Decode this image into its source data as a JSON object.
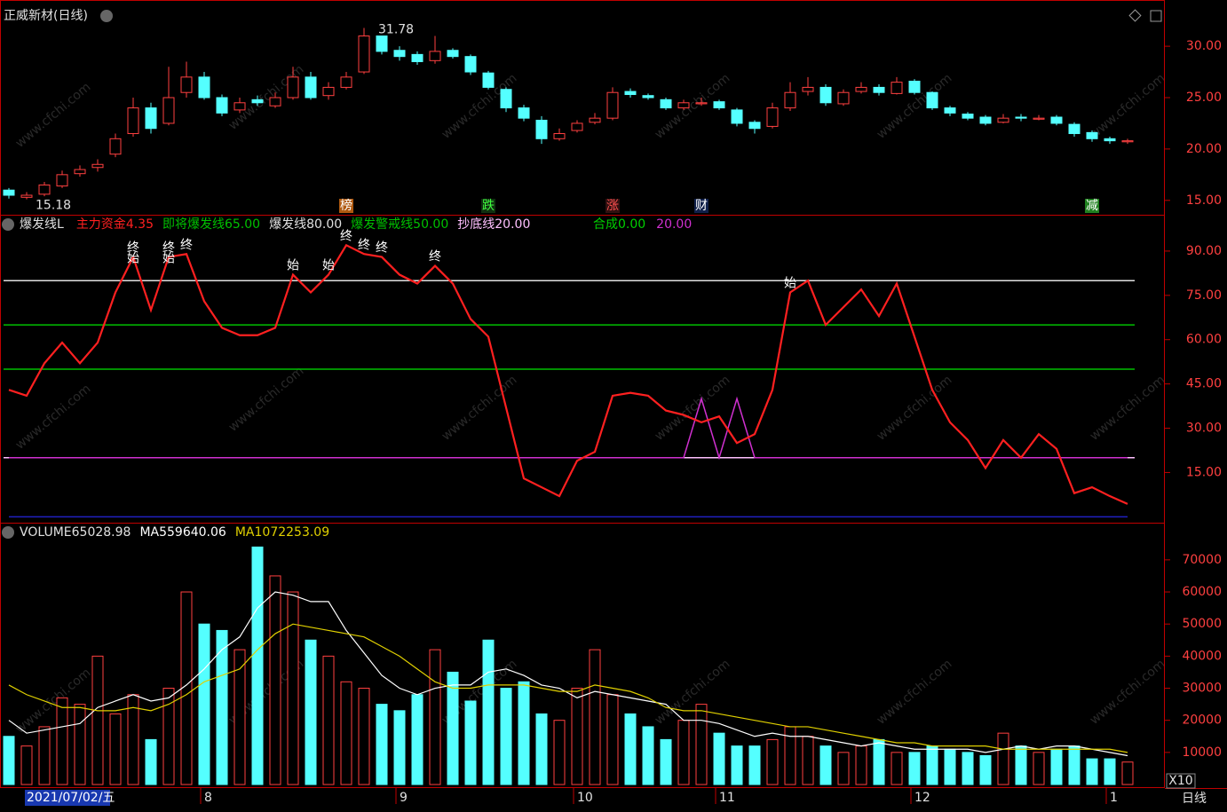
{
  "chart_data": [
    {
      "type": "candlestick",
      "title": "正威新材(日线)",
      "open": [
        16,
        15.3,
        15.6,
        16.4,
        17.6,
        18.2,
        19.5,
        21.5,
        24,
        22.5,
        25.5,
        27,
        25,
        23.8,
        24.8,
        24.2,
        25,
        27,
        25.2,
        26,
        27.5,
        31,
        29.6,
        29.2,
        28.6,
        29.6,
        29,
        27.4,
        25.8,
        24,
        22.8,
        21,
        21.8,
        22.6,
        23,
        25.6,
        25.2,
        24.8,
        24,
        24.4,
        24.6,
        23.8,
        22.6,
        22.2,
        24,
        25.6,
        26,
        24.4,
        25.6,
        26,
        25.4,
        26.6,
        25.5,
        24,
        23.4,
        23.1,
        22.6,
        23.1,
        22.9,
        23.1,
        22.4,
        21.6,
        21,
        20.7
      ],
      "high": [
        16.2,
        15.8,
        16.8,
        17.9,
        18.4,
        19,
        21.5,
        25,
        24.5,
        28,
        28.5,
        27.5,
        25.3,
        25,
        25.2,
        25.5,
        28,
        27.5,
        26.5,
        27.5,
        31.78,
        31,
        30,
        29.5,
        31,
        29.8,
        29.2,
        27.6,
        26,
        24.3,
        23.2,
        22,
        22.8,
        23.5,
        26,
        25.9,
        25.4,
        25,
        24.8,
        25,
        24.8,
        24,
        22.8,
        24.5,
        26.5,
        27,
        26.3,
        25.8,
        26.5,
        26.3,
        27,
        26.8,
        25.6,
        24.2,
        23.6,
        23.3,
        23.4,
        23.4,
        23.3,
        23.3,
        22.6,
        21.8,
        21.2,
        21
      ],
      "low": [
        15.18,
        15.1,
        15.4,
        16.2,
        17.3,
        17.8,
        19.2,
        21.2,
        21.5,
        22.3,
        25,
        24.8,
        23.2,
        23.5,
        24.2,
        24,
        24.8,
        24.8,
        24.8,
        25.8,
        27.3,
        29.2,
        28.6,
        28.2,
        28.3,
        28.8,
        27.2,
        25.8,
        23.6,
        22.7,
        20.5,
        20.8,
        21.6,
        22.4,
        22.8,
        25,
        24.8,
        23.8,
        23.8,
        24.2,
        23.8,
        22.2,
        21.5,
        22,
        23.7,
        25.2,
        24.2,
        24.2,
        25.4,
        25.2,
        25.3,
        25.3,
        23.8,
        23.2,
        22.8,
        22.3,
        22.5,
        22.7,
        22.8,
        22.3,
        21.2,
        20.7,
        20.5,
        20.5
      ],
      "close": [
        15.5,
        15.5,
        16.5,
        17.5,
        18,
        18.5,
        21,
        24,
        22,
        25,
        27,
        25,
        23.5,
        24.5,
        24.5,
        25,
        27,
        25,
        26,
        27,
        31,
        29.5,
        29,
        28.5,
        29.5,
        29,
        27.5,
        26,
        24,
        23,
        21,
        21.5,
        22.5,
        23,
        25.5,
        25.3,
        25,
        24,
        24.5,
        24.5,
        24,
        22.5,
        22,
        24,
        25.5,
        26,
        24.5,
        25.5,
        26,
        25.5,
        26.5,
        25.5,
        24,
        23.5,
        23,
        22.5,
        23,
        23,
        23,
        22.5,
        21.5,
        21,
        20.8,
        20.8
      ],
      "up_color": "#ff4040",
      "down_color": "#54ffff",
      "max_label": {
        "at": 20,
        "value": 31.78
      },
      "min_label": {
        "at": 0,
        "value": 15.18
      },
      "events": [
        {
          "at": 19,
          "label": "榜",
          "color": "#ffffff",
          "bg": "#b05a10"
        },
        {
          "at": 27,
          "label": "跌",
          "color": "#40ff40",
          "bg": "#103010"
        },
        {
          "at": 34,
          "label": "涨",
          "color": "#ff5050",
          "bg": "#301010"
        },
        {
          "at": 39,
          "label": "财",
          "color": "#ffffff",
          "bg": "#10204a"
        },
        {
          "at": 61,
          "label": "减",
          "color": "#ffffff",
          "bg": "#208020"
        }
      ],
      "ylim": [
        13.6,
        34.5
      ],
      "yticks": [
        {
          "value": 15,
          "label": "15.00"
        },
        {
          "value": 20,
          "label": "20.00"
        },
        {
          "value": 25,
          "label": "25.00"
        },
        {
          "value": 30,
          "label": "30.00"
        }
      ]
    },
    {
      "type": "line",
      "title": "爆发线L",
      "series": [
        {
          "name": "主力资金",
          "label": "4.35",
          "color": "#ff2020",
          "values": [
            43,
            41,
            52,
            59,
            52,
            59,
            76,
            88,
            70,
            88,
            89,
            73,
            64,
            61.5,
            61.5,
            64,
            82,
            76,
            82,
            92,
            89,
            88,
            82,
            79,
            85,
            79,
            67,
            61,
            37,
            13,
            10,
            7,
            19,
            22,
            41,
            42,
            41,
            36,
            34.5,
            32,
            34,
            25,
            28,
            43,
            76,
            80,
            65,
            71,
            77,
            68,
            79,
            61,
            43,
            32,
            26,
            16.5,
            26,
            20,
            28,
            23,
            8,
            10,
            7,
            4.35
          ]
        },
        {
          "name": "合成",
          "label": "0.00",
          "color": "#2020c0",
          "label_color": "#00d000",
          "values": [
            0,
            0,
            0,
            0,
            0,
            0,
            0,
            0,
            0,
            0,
            0,
            0,
            0,
            0,
            0,
            0,
            0,
            0,
            0,
            0,
            0,
            0,
            0,
            0,
            0,
            0,
            0,
            0,
            0,
            0,
            0,
            0,
            0,
            0,
            0,
            0,
            0,
            0,
            0,
            0,
            0,
            0,
            0,
            0,
            0,
            0,
            0,
            0,
            0,
            0,
            0,
            0,
            0,
            0,
            0,
            0,
            0,
            0,
            0,
            0,
            0,
            0,
            0,
            0
          ]
        },
        {
          "name": null,
          "label": "20.00",
          "color": "#d030d0",
          "values": [
            20,
            20,
            20,
            20,
            20,
            20,
            20,
            20,
            20,
            20,
            20,
            20,
            20,
            20,
            20,
            20,
            20,
            20,
            20,
            20,
            20,
            20,
            20,
            20,
            20,
            20,
            20,
            20,
            20,
            20,
            20,
            20,
            20,
            20,
            20,
            20,
            20,
            20,
            20,
            40,
            20,
            40,
            20,
            20,
            20,
            20,
            20,
            20,
            20,
            20,
            20,
            20,
            20,
            20,
            20,
            20,
            20,
            20,
            20,
            20,
            20,
            20,
            20,
            20
          ]
        }
      ],
      "ref_lines": [
        {
          "name": "即将爆发线",
          "value": 65,
          "label": "65.00",
          "color": "#00c000"
        },
        {
          "name": "爆发线",
          "value": 80,
          "label": "80.00",
          "color": "#e0e0e0"
        },
        {
          "name": "爆发警戒线",
          "value": 50,
          "label": "50.00",
          "color": "#00c000"
        },
        {
          "name": "抄底线",
          "value": 20,
          "label": "20.00",
          "color": "#ffc0ff"
        }
      ],
      "signals": [
        {
          "at": 7,
          "label": "终"
        },
        {
          "at": 7,
          "label": "始"
        },
        {
          "at": 9,
          "label": "终"
        },
        {
          "at": 9,
          "label": "始"
        },
        {
          "at": 10,
          "label": "终"
        },
        {
          "at": 16,
          "label": "始"
        },
        {
          "at": 18,
          "label": "始"
        },
        {
          "at": 19,
          "label": "终"
        },
        {
          "at": 20,
          "label": "终"
        },
        {
          "at": 21,
          "label": "终"
        },
        {
          "at": 24,
          "label": "终"
        },
        {
          "at": 44,
          "label": "始"
        }
      ],
      "ylim": [
        -2,
        102
      ],
      "yticks": [
        {
          "value": 15,
          "label": "15.00"
        },
        {
          "value": 30,
          "label": "30.00"
        },
        {
          "value": 45,
          "label": "45.00"
        },
        {
          "value": 60,
          "label": "60.00"
        },
        {
          "value": 75,
          "label": "75.00"
        },
        {
          "value": 90,
          "label": "90.00"
        }
      ]
    },
    {
      "type": "bar",
      "title": "VOLUME",
      "title_value": "65028.98",
      "values": [
        15000,
        12000,
        18000,
        27000,
        25000,
        40000,
        22000,
        28000,
        14000,
        30000,
        60000,
        50000,
        48000,
        42000,
        74000,
        65000,
        60000,
        45000,
        40000,
        32000,
        30000,
        25000,
        23000,
        28000,
        42000,
        35000,
        26000,
        45000,
        30000,
        32000,
        22000,
        20000,
        30000,
        42000,
        28000,
        22000,
        18000,
        14000,
        20000,
        25000,
        16000,
        12000,
        12000,
        14000,
        18000,
        15000,
        12000,
        10000,
        12000,
        14000,
        10000,
        10000,
        12000,
        11000,
        10000,
        9000,
        16000,
        12000,
        10000,
        11000,
        12000,
        8000,
        8000,
        7000
      ],
      "series": [
        {
          "name": "MA5",
          "label": "59640.06",
          "color": "#ffffff",
          "values": [
            20000,
            16000,
            17000,
            18000,
            19000,
            24000,
            26000,
            28000,
            26000,
            27000,
            31000,
            36000,
            42000,
            46000,
            55000,
            60000,
            59000,
            57000,
            57000,
            48000,
            41000,
            34000,
            30000,
            28000,
            30000,
            31000,
            31000,
            35000,
            36000,
            34000,
            31000,
            30000,
            27000,
            29000,
            28000,
            27000,
            26000,
            25000,
            20000,
            20000,
            19000,
            17000,
            15000,
            16000,
            15000,
            15000,
            14000,
            13000,
            12000,
            13000,
            12000,
            11000,
            11000,
            11000,
            11000,
            10000,
            11000,
            12000,
            11000,
            12000,
            12000,
            11000,
            10000,
            9000
          ]
        },
        {
          "name": "MA10",
          "label": "72253.09",
          "color": "#e0d000",
          "values": [
            31000,
            28000,
            26000,
            24000,
            24000,
            23000,
            23000,
            24000,
            23000,
            25000,
            28000,
            32000,
            34000,
            36000,
            42000,
            47000,
            50000,
            49000,
            48000,
            47000,
            46000,
            43000,
            40000,
            36000,
            32000,
            30000,
            30000,
            31000,
            31000,
            31000,
            30000,
            29000,
            29000,
            31000,
            30000,
            29000,
            27000,
            24000,
            23000,
            23000,
            22000,
            21000,
            20000,
            19000,
            18000,
            18000,
            17000,
            16000,
            15000,
            14000,
            13000,
            13000,
            12000,
            12000,
            12000,
            12000,
            11000,
            11000,
            11000,
            11000,
            11000,
            11000,
            11000,
            10000
          ]
        }
      ],
      "ylim": [
        -1100,
        81300
      ],
      "yticks": [
        10000,
        20000,
        30000,
        40000,
        50000,
        60000,
        70000
      ],
      "unit_label": "X10",
      "cursor_date": "2021/07/02/五",
      "x_labels": [
        {
          "at": 11,
          "label": "8"
        },
        {
          "at": 22,
          "label": "9"
        },
        {
          "at": 32,
          "label": "10"
        },
        {
          "at": 40,
          "label": "11"
        },
        {
          "at": 51,
          "label": "12"
        },
        {
          "at": 62,
          "label": "1"
        }
      ],
      "period": "日线"
    }
  ],
  "watermark": "www.cfchi.com"
}
